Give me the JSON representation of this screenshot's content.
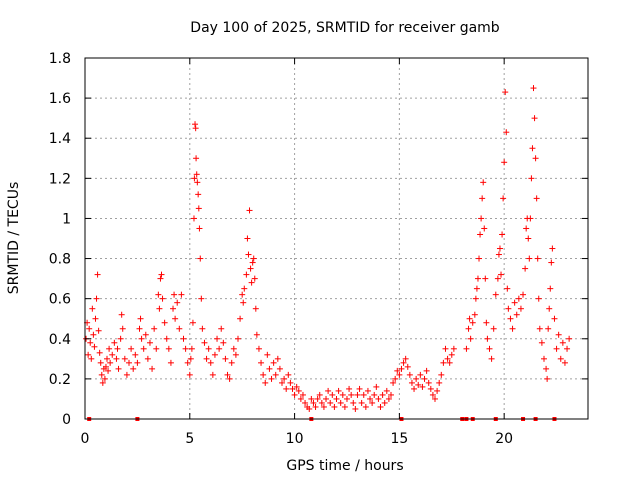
{
  "chart_data": {
    "type": "scatter",
    "title": "Day 100 of 2025, SRMTID for receiver gamb",
    "xlabel": "GPS time / hours",
    "ylabel": "SRMTID / TECUs",
    "xlim": [
      0,
      24
    ],
    "ylim": [
      0,
      1.8
    ],
    "x_ticks": [
      0,
      5,
      10,
      15,
      20
    ],
    "x_tick_labels": [
      "0",
      "5",
      "10",
      "15",
      "20"
    ],
    "y_ticks": [
      0,
      0.2,
      0.4,
      0.6,
      0.8,
      1.0,
      1.2,
      1.4,
      1.6,
      1.8
    ],
    "y_tick_labels": [
      "0",
      "0.2",
      "0.4",
      "0.6",
      "0.8",
      "1",
      "1.2",
      "1.4",
      "1.6",
      "1.8"
    ],
    "grid": true,
    "marker": "+",
    "color": "#ff0000",
    "series": [
      {
        "name": "SRMTID",
        "points": [
          [
            0.05,
            0.4
          ],
          [
            0.1,
            0.48
          ],
          [
            0.15,
            0.32
          ],
          [
            0.2,
            0.45
          ],
          [
            0.25,
            0.38
          ],
          [
            0.3,
            0.3
          ],
          [
            0.35,
            0.55
          ],
          [
            0.4,
            0.42
          ],
          [
            0.45,
            0.36
          ],
          [
            0.5,
            0.5
          ],
          [
            0.55,
            0.6
          ],
          [
            0.6,
            0.72
          ],
          [
            0.65,
            0.44
          ],
          [
            0.7,
            0.33
          ],
          [
            0.75,
            0.28
          ],
          [
            0.8,
            0.22
          ],
          [
            0.85,
            0.18
          ],
          [
            0.9,
            0.25
          ],
          [
            0.95,
            0.2
          ],
          [
            1.0,
            0.26
          ],
          [
            1.05,
            0.3
          ],
          [
            1.1,
            0.24
          ],
          [
            1.15,
            0.35
          ],
          [
            1.2,
            0.28
          ],
          [
            1.3,
            0.32
          ],
          [
            1.4,
            0.38
          ],
          [
            1.5,
            0.3
          ],
          [
            1.55,
            0.35
          ],
          [
            1.6,
            0.25
          ],
          [
            1.7,
            0.4
          ],
          [
            1.75,
            0.52
          ],
          [
            1.8,
            0.45
          ],
          [
            1.9,
            0.3
          ],
          [
            2.0,
            0.22
          ],
          [
            2.1,
            0.28
          ],
          [
            2.2,
            0.35
          ],
          [
            2.3,
            0.25
          ],
          [
            2.4,
            0.32
          ],
          [
            2.5,
            0.28
          ],
          [
            2.6,
            0.45
          ],
          [
            2.65,
            0.5
          ],
          [
            2.7,
            0.4
          ],
          [
            2.8,
            0.35
          ],
          [
            2.9,
            0.42
          ],
          [
            3.0,
            0.3
          ],
          [
            3.1,
            0.38
          ],
          [
            3.2,
            0.25
          ],
          [
            3.3,
            0.45
          ],
          [
            3.4,
            0.35
          ],
          [
            3.5,
            0.62
          ],
          [
            3.55,
            0.55
          ],
          [
            3.6,
            0.7
          ],
          [
            3.65,
            0.72
          ],
          [
            3.7,
            0.6
          ],
          [
            3.8,
            0.48
          ],
          [
            3.9,
            0.4
          ],
          [
            4.0,
            0.35
          ],
          [
            4.1,
            0.28
          ],
          [
            4.2,
            0.55
          ],
          [
            4.25,
            0.62
          ],
          [
            4.3,
            0.5
          ],
          [
            4.4,
            0.58
          ],
          [
            4.5,
            0.45
          ],
          [
            4.6,
            0.62
          ],
          [
            4.7,
            0.4
          ],
          [
            4.8,
            0.35
          ],
          [
            4.9,
            0.28
          ],
          [
            5.0,
            0.22
          ],
          [
            5.05,
            0.3
          ],
          [
            5.1,
            0.35
          ],
          [
            5.15,
            0.48
          ],
          [
            5.2,
            1.0
          ],
          [
            5.22,
            1.2
          ],
          [
            5.25,
            1.47
          ],
          [
            5.28,
            1.45
          ],
          [
            5.3,
            1.3
          ],
          [
            5.33,
            1.22
          ],
          [
            5.36,
            1.18
          ],
          [
            5.4,
            1.12
          ],
          [
            5.43,
            1.05
          ],
          [
            5.46,
            0.95
          ],
          [
            5.5,
            0.8
          ],
          [
            5.55,
            0.6
          ],
          [
            5.6,
            0.45
          ],
          [
            5.7,
            0.38
          ],
          [
            5.8,
            0.3
          ],
          [
            5.9,
            0.35
          ],
          [
            6.0,
            0.28
          ],
          [
            6.1,
            0.22
          ],
          [
            6.2,
            0.32
          ],
          [
            6.3,
            0.4
          ],
          [
            6.4,
            0.35
          ],
          [
            6.5,
            0.45
          ],
          [
            6.6,
            0.38
          ],
          [
            6.7,
            0.3
          ],
          [
            6.8,
            0.22
          ],
          [
            6.9,
            0.2
          ],
          [
            7.0,
            0.28
          ],
          [
            7.1,
            0.35
          ],
          [
            7.2,
            0.32
          ],
          [
            7.3,
            0.4
          ],
          [
            7.4,
            0.5
          ],
          [
            7.5,
            0.62
          ],
          [
            7.55,
            0.58
          ],
          [
            7.6,
            0.65
          ],
          [
            7.7,
            0.72
          ],
          [
            7.75,
            0.9
          ],
          [
            7.8,
            0.82
          ],
          [
            7.85,
            1.04
          ],
          [
            7.9,
            0.75
          ],
          [
            7.95,
            0.68
          ],
          [
            8.0,
            0.78
          ],
          [
            8.05,
            0.8
          ],
          [
            8.1,
            0.7
          ],
          [
            8.15,
            0.55
          ],
          [
            8.2,
            0.42
          ],
          [
            8.3,
            0.35
          ],
          [
            8.4,
            0.28
          ],
          [
            8.5,
            0.22
          ],
          [
            8.6,
            0.18
          ],
          [
            8.7,
            0.32
          ],
          [
            8.8,
            0.25
          ],
          [
            8.9,
            0.2
          ],
          [
            9.0,
            0.28
          ],
          [
            9.1,
            0.22
          ],
          [
            9.2,
            0.3
          ],
          [
            9.3,
            0.25
          ],
          [
            9.4,
            0.18
          ],
          [
            9.5,
            0.2
          ],
          [
            9.6,
            0.15
          ],
          [
            9.7,
            0.22
          ],
          [
            9.8,
            0.18
          ],
          [
            9.9,
            0.15
          ],
          [
            10.0,
            0.12
          ],
          [
            10.1,
            0.16
          ],
          [
            10.2,
            0.14
          ],
          [
            10.3,
            0.1
          ],
          [
            10.4,
            0.12
          ],
          [
            10.5,
            0.08
          ],
          [
            10.6,
            0.06
          ],
          [
            10.7,
            0.05
          ],
          [
            10.8,
            0.1
          ],
          [
            10.9,
            0.08
          ],
          [
            11.0,
            0.06
          ],
          [
            11.1,
            0.1
          ],
          [
            11.2,
            0.12
          ],
          [
            11.3,
            0.08
          ],
          [
            11.4,
            0.06
          ],
          [
            11.5,
            0.1
          ],
          [
            11.6,
            0.14
          ],
          [
            11.7,
            0.08
          ],
          [
            11.8,
            0.12
          ],
          [
            11.9,
            0.06
          ],
          [
            12.0,
            0.1
          ],
          [
            12.1,
            0.14
          ],
          [
            12.2,
            0.08
          ],
          [
            12.3,
            0.12
          ],
          [
            12.4,
            0.06
          ],
          [
            12.5,
            0.1
          ],
          [
            12.6,
            0.15
          ],
          [
            12.7,
            0.12
          ],
          [
            12.8,
            0.08
          ],
          [
            12.9,
            0.05
          ],
          [
            13.0,
            0.12
          ],
          [
            13.1,
            0.15
          ],
          [
            13.2,
            0.08
          ],
          [
            13.3,
            0.12
          ],
          [
            13.4,
            0.06
          ],
          [
            13.5,
            0.14
          ],
          [
            13.6,
            0.1
          ],
          [
            13.7,
            0.08
          ],
          [
            13.8,
            0.12
          ],
          [
            13.9,
            0.16
          ],
          [
            14.0,
            0.1
          ],
          [
            14.1,
            0.06
          ],
          [
            14.2,
            0.12
          ],
          [
            14.3,
            0.08
          ],
          [
            14.4,
            0.14
          ],
          [
            14.5,
            0.1
          ],
          [
            14.6,
            0.12
          ],
          [
            14.7,
            0.18
          ],
          [
            14.8,
            0.2
          ],
          [
            14.9,
            0.24
          ],
          [
            15.0,
            0.22
          ],
          [
            15.1,
            0.25
          ],
          [
            15.2,
            0.28
          ],
          [
            15.3,
            0.3
          ],
          [
            15.4,
            0.26
          ],
          [
            15.5,
            0.22
          ],
          [
            15.6,
            0.18
          ],
          [
            15.7,
            0.15
          ],
          [
            15.8,
            0.2
          ],
          [
            15.9,
            0.17
          ],
          [
            16.0,
            0.22
          ],
          [
            16.1,
            0.16
          ],
          [
            16.2,
            0.2
          ],
          [
            16.3,
            0.24
          ],
          [
            16.4,
            0.18
          ],
          [
            16.5,
            0.15
          ],
          [
            16.6,
            0.12
          ],
          [
            16.7,
            0.1
          ],
          [
            16.8,
            0.14
          ],
          [
            16.9,
            0.18
          ],
          [
            17.0,
            0.22
          ],
          [
            17.1,
            0.28
          ],
          [
            17.2,
            0.35
          ],
          [
            17.3,
            0.3
          ],
          [
            17.4,
            0.28
          ],
          [
            17.5,
            0.32
          ],
          [
            17.6,
            0.35
          ],
          [
            18.2,
            0.35
          ],
          [
            18.3,
            0.45
          ],
          [
            18.35,
            0.5
          ],
          [
            18.4,
            0.4
          ],
          [
            18.5,
            0.48
          ],
          [
            18.6,
            0.52
          ],
          [
            18.65,
            0.6
          ],
          [
            18.7,
            0.65
          ],
          [
            18.75,
            0.7
          ],
          [
            18.8,
            0.8
          ],
          [
            18.85,
            0.92
          ],
          [
            18.9,
            1.0
          ],
          [
            18.95,
            1.1
          ],
          [
            19.0,
            1.18
          ],
          [
            19.05,
            0.95
          ],
          [
            19.1,
            0.7
          ],
          [
            19.15,
            0.48
          ],
          [
            19.2,
            0.4
          ],
          [
            19.3,
            0.35
          ],
          [
            19.4,
            0.3
          ],
          [
            19.5,
            0.45
          ],
          [
            19.6,
            0.62
          ],
          [
            19.7,
            0.7
          ],
          [
            19.75,
            0.82
          ],
          [
            19.8,
            0.85
          ],
          [
            19.85,
            0.72
          ],
          [
            19.9,
            0.92
          ],
          [
            19.95,
            1.1
          ],
          [
            20.0,
            1.28
          ],
          [
            20.05,
            1.63
          ],
          [
            20.1,
            1.43
          ],
          [
            20.15,
            0.65
          ],
          [
            20.2,
            0.55
          ],
          [
            20.3,
            0.5
          ],
          [
            20.4,
            0.45
          ],
          [
            20.5,
            0.58
          ],
          [
            20.6,
            0.52
          ],
          [
            20.7,
            0.6
          ],
          [
            20.8,
            0.55
          ],
          [
            20.9,
            0.62
          ],
          [
            21.0,
            0.75
          ],
          [
            21.05,
            0.95
          ],
          [
            21.1,
            1.0
          ],
          [
            21.15,
            0.9
          ],
          [
            21.2,
            0.8
          ],
          [
            21.25,
            1.0
          ],
          [
            21.3,
            1.2
          ],
          [
            21.35,
            1.35
          ],
          [
            21.4,
            1.65
          ],
          [
            21.45,
            1.5
          ],
          [
            21.5,
            1.3
          ],
          [
            21.55,
            1.1
          ],
          [
            21.6,
            0.8
          ],
          [
            21.65,
            0.6
          ],
          [
            21.7,
            0.45
          ],
          [
            21.8,
            0.38
          ],
          [
            21.9,
            0.3
          ],
          [
            22.0,
            0.25
          ],
          [
            22.05,
            0.2
          ],
          [
            22.1,
            0.45
          ],
          [
            22.15,
            0.55
          ],
          [
            22.2,
            0.65
          ],
          [
            22.25,
            0.78
          ],
          [
            22.3,
            0.85
          ],
          [
            22.4,
            0.5
          ],
          [
            22.5,
            0.35
          ],
          [
            22.6,
            0.42
          ],
          [
            22.7,
            0.3
          ],
          [
            22.8,
            0.38
          ],
          [
            22.9,
            0.28
          ],
          [
            23.0,
            0.35
          ],
          [
            23.1,
            0.4
          ]
        ]
      }
    ],
    "zero_markers_x": [
      0.2,
      2.5,
      10.8,
      15.1,
      18.0,
      18.2,
      18.5,
      19.6,
      20.9,
      21.5,
      22.4
    ]
  }
}
